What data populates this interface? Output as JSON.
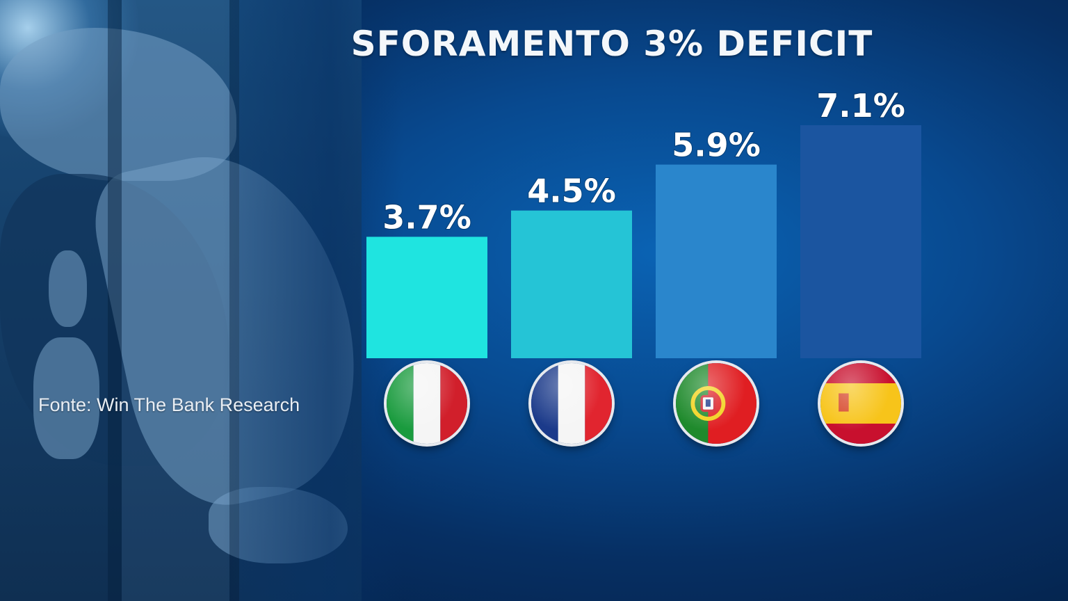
{
  "title": "SFORAMENTO 3% DEFICIT",
  "source": "Fonte: Win The Bank Research",
  "chart_data": {
    "type": "bar",
    "title": "SFORAMENTO 3% DEFICIT",
    "categories": [
      "Italy",
      "France",
      "Portugal",
      "Spain"
    ],
    "values": [
      3.7,
      4.5,
      5.9,
      7.1
    ],
    "value_labels": [
      "3.7%",
      "4.5%",
      "5.9%",
      "7.1%"
    ],
    "unit": "%",
    "xlabel": "",
    "ylabel": "",
    "ylim": [
      0,
      7.1
    ],
    "grid": false,
    "legend": "none",
    "bar_colors": [
      "#1fe4e0",
      "#25c4d6",
      "#2a86cc",
      "#1b55a0"
    ],
    "category_icons": [
      "italy-flag-icon",
      "france-flag-icon",
      "portugal-flag-icon",
      "spain-flag-icon"
    ]
  },
  "colors": {
    "background": "#08498f",
    "title_text": "#f4f7fa",
    "label_text": "#ffffff"
  }
}
